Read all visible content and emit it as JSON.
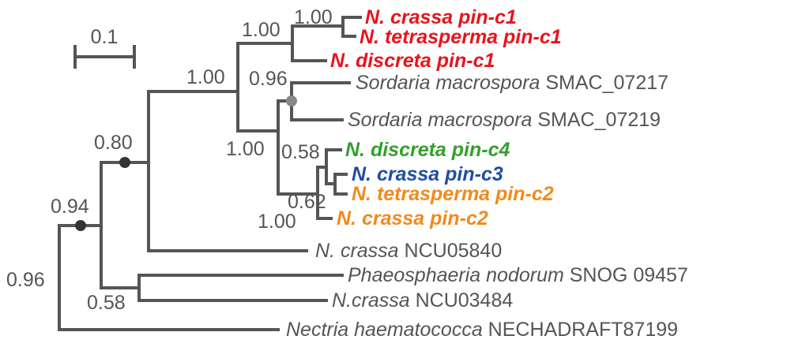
{
  "scale_bar": {
    "label": "0.1"
  },
  "colors": {
    "branch": "#555555",
    "red": "#e8141c",
    "green": "#33a02c",
    "blue": "#1f4fa0",
    "orange": "#f28a1c",
    "node_dark": "#333333",
    "node_grey": "#888888"
  },
  "taxa": [
    {
      "species": "N. crassa pin-c1",
      "gene": ""
    },
    {
      "species": "N. tetrasperma pin-c1",
      "gene": ""
    },
    {
      "species": "N. discreta pin-c1",
      "gene": ""
    },
    {
      "species": "Sordaria macrospora",
      "gene": " SMAC_07217"
    },
    {
      "species": "Sordaria macrospora",
      "gene": " SMAC_07219"
    },
    {
      "species": "N. discreta pin-c4",
      "gene": ""
    },
    {
      "species": "N. crassa pin-c3",
      "gene": ""
    },
    {
      "species": "N. tetrasperma pin-c2",
      "gene": ""
    },
    {
      "species": "N. crassa pin-c2",
      "gene": ""
    },
    {
      "species": "N. crassa",
      "gene": " NCU05840"
    },
    {
      "species": "Phaeosphaeria nodorum",
      "gene": " SNOG 09457"
    },
    {
      "species": "N.crassa",
      "gene": " NCU03484"
    },
    {
      "species": "Nectria haematococca",
      "gene": " NECHADRAFT87199"
    }
  ],
  "support": {
    "pin_c1_inner": "1.00",
    "pin_c1_clade": "1.00",
    "neurospora_sordaria": "1.00",
    "sordaria_pair": "0.96",
    "pin_c234_clade": "1.00",
    "pin_c4_c3": "0.58",
    "pin_c2_group": "0.62",
    "pin_c3_c2": "1.00",
    "ncu05840_node": "0.80",
    "ingroup": "0.94",
    "root": "0.96",
    "snog_ncu03484": "0.58"
  }
}
